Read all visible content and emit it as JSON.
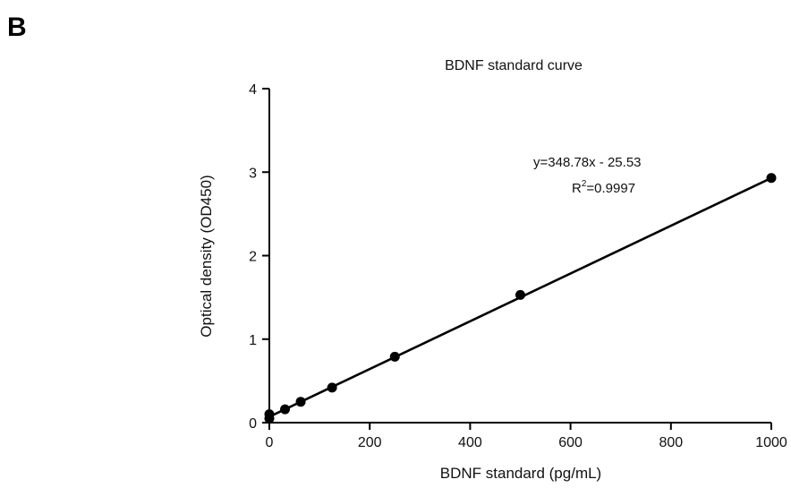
{
  "panel_label": "B",
  "chart_data": {
    "type": "scatter",
    "title": "BDNF standard curve",
    "xlabel": "BDNF standard (pg/mL)",
    "ylabel": "Optical density (OD450)",
    "xlim": [
      0,
      1000
    ],
    "ylim": [
      0,
      4
    ],
    "xticks": [
      0,
      200,
      400,
      600,
      800,
      1000
    ],
    "yticks": [
      0,
      1,
      2,
      3,
      4
    ],
    "grid": false,
    "series": [
      {
        "points": [
          {
            "x": 0,
            "y": 0.05
          },
          {
            "x": 0,
            "y": 0.1
          },
          {
            "x": 31.25,
            "y": 0.16
          },
          {
            "x": 62.5,
            "y": 0.25
          },
          {
            "x": 125,
            "y": 0.42
          },
          {
            "x": 250,
            "y": 0.79
          },
          {
            "x": 500,
            "y": 1.53
          },
          {
            "x": 1000,
            "y": 2.93
          }
        ]
      }
    ],
    "fit_line": {
      "x1": 0,
      "y1": 0.07,
      "x2": 1000,
      "y2": 2.93
    },
    "annotations": {
      "equation": "y=348.78x - 25.53",
      "r_squared_prefix": "R",
      "r_squared_sup": "2",
      "r_squared_value": "=0.9997"
    },
    "colors": {
      "axis": "#000000",
      "points": "#000000",
      "fit_line": "#000000"
    }
  }
}
